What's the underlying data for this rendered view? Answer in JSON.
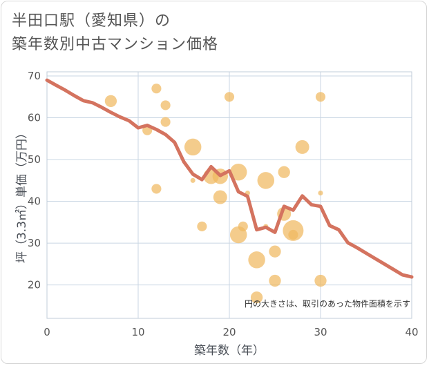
{
  "title": {
    "line1": "半田口駅（愛知県）の",
    "line2": "築年数別中古マンション価格"
  },
  "colors": {
    "bubble": "#f0b860",
    "line": "#d4735f",
    "grid": "#c9d6e3",
    "background": "#ffffff",
    "text": "#555555"
  },
  "chart_data": {
    "type": "scatter",
    "title": "半田口駅（愛知県）の築年数別中古マンション価格",
    "xlabel": "築年数（年）",
    "ylabel": "坪（3.3㎡）単価（万円）",
    "xlim": [
      0,
      40
    ],
    "ylim": [
      12,
      71
    ],
    "xticks": [
      0,
      10,
      20,
      30,
      40
    ],
    "yticks": [
      20,
      30,
      40,
      50,
      60,
      70
    ],
    "grid": true,
    "note": "円の大きさは、取引のあった物件面積を示す",
    "series": [
      {
        "type": "bubble",
        "points": [
          {
            "x": 7,
            "y": 64,
            "size": 3
          },
          {
            "x": 11,
            "y": 57,
            "size": 2
          },
          {
            "x": 12,
            "y": 67,
            "size": 2
          },
          {
            "x": 12,
            "y": 43,
            "size": 2
          },
          {
            "x": 13,
            "y": 63,
            "size": 2
          },
          {
            "x": 13,
            "y": 59,
            "size": 2
          },
          {
            "x": 16,
            "y": 53,
            "size": 6
          },
          {
            "x": 16,
            "y": 45,
            "size": 0.5
          },
          {
            "x": 17,
            "y": 34,
            "size": 2
          },
          {
            "x": 18,
            "y": 46,
            "size": 5
          },
          {
            "x": 19,
            "y": 46,
            "size": 5
          },
          {
            "x": 19,
            "y": 41,
            "size": 4
          },
          {
            "x": 20,
            "y": 65,
            "size": 2
          },
          {
            "x": 21,
            "y": 47,
            "size": 6
          },
          {
            "x": 21,
            "y": 32,
            "size": 6
          },
          {
            "x": 21.5,
            "y": 34,
            "size": 2
          },
          {
            "x": 22,
            "y": 42,
            "size": 0.5
          },
          {
            "x": 23,
            "y": 26,
            "size": 6
          },
          {
            "x": 23,
            "y": 17,
            "size": 3
          },
          {
            "x": 24,
            "y": 45,
            "size": 6
          },
          {
            "x": 24,
            "y": 34,
            "size": 0.5
          },
          {
            "x": 25,
            "y": 28,
            "size": 3
          },
          {
            "x": 25,
            "y": 21,
            "size": 3
          },
          {
            "x": 26,
            "y": 47,
            "size": 3
          },
          {
            "x": 26,
            "y": 37,
            "size": 4
          },
          {
            "x": 27,
            "y": 33,
            "size": 9
          },
          {
            "x": 27,
            "y": 32,
            "size": 2
          },
          {
            "x": 28,
            "y": 53,
            "size": 4
          },
          {
            "x": 30,
            "y": 65,
            "size": 2
          },
          {
            "x": 30,
            "y": 42,
            "size": 0.5
          },
          {
            "x": 30,
            "y": 21,
            "size": 3
          }
        ]
      },
      {
        "type": "line",
        "x": [
          0,
          1,
          2,
          3,
          4,
          5,
          6,
          7,
          8,
          9,
          10,
          11,
          12,
          13,
          14,
          15,
          16,
          17,
          18,
          19,
          20,
          21,
          22,
          23,
          24,
          25,
          26,
          27,
          28,
          29,
          30,
          31,
          32,
          33,
          34,
          35,
          36,
          37,
          38,
          39,
          40
        ],
        "y": [
          69,
          67.8,
          66.6,
          65.3,
          64.1,
          63.6,
          62.5,
          61.3,
          60.2,
          59.3,
          57.6,
          58.2,
          57.2,
          56,
          54.1,
          49.5,
          46.5,
          45.2,
          48.3,
          46.2,
          47.3,
          42.3,
          41.2,
          33.2,
          33.8,
          32.6,
          38.8,
          37.9,
          41.3,
          39.2,
          38.8,
          34.2,
          33.2,
          30.1,
          28.9,
          27.6,
          26.3,
          25,
          23.7,
          22.4,
          21.9
        ]
      }
    ]
  }
}
